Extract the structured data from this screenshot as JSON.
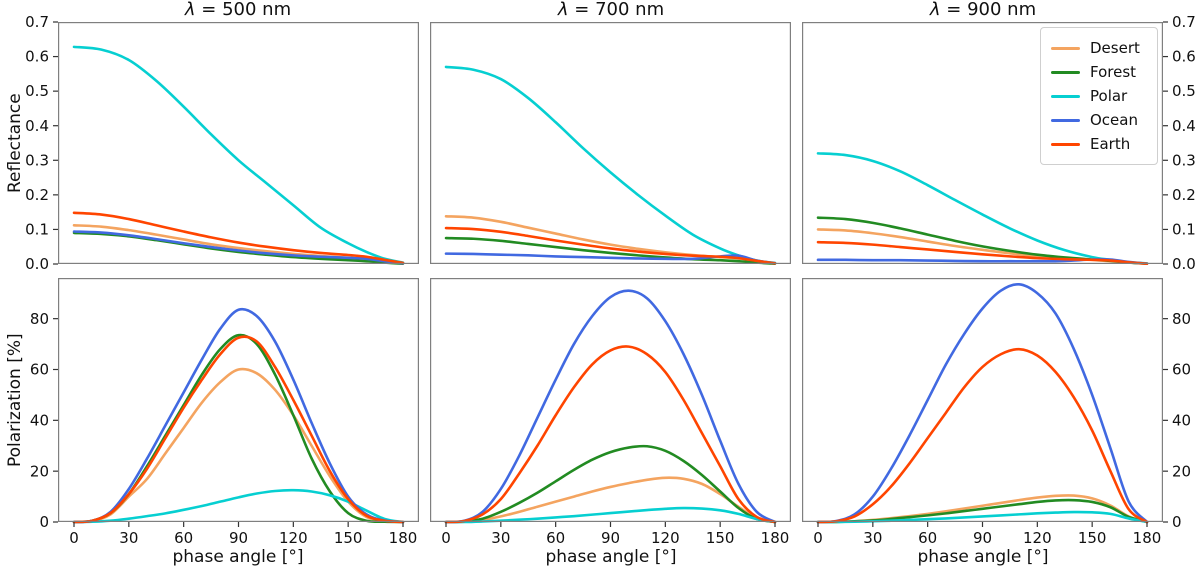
{
  "figure": {
    "titles": [
      "λ = 500 nm",
      "λ = 700 nm",
      "λ = 900 nm"
    ],
    "ylabels": [
      "Reflectance",
      "Polarization [%]"
    ],
    "xlabel": "phase angle [°]",
    "x_ticks": {
      "values": [
        0,
        30,
        60,
        90,
        120,
        150,
        180
      ],
      "labels": [
        "0",
        "30",
        "60",
        "90",
        "120",
        "150",
        "180"
      ]
    },
    "y_ticks_reflectance": {
      "values": [
        0,
        0.1,
        0.2,
        0.3,
        0.4,
        0.5,
        0.6,
        0.7
      ],
      "labels": [
        "0.0",
        "0.1",
        "0.2",
        "0.3",
        "0.4",
        "0.5",
        "0.6",
        "0.7"
      ]
    },
    "y_ticks_polarization": {
      "values": [
        0,
        20,
        40,
        60,
        80
      ],
      "labels": [
        "0",
        "20",
        "40",
        "60",
        "80"
      ]
    },
    "frame_color": "#7f7f7f",
    "tick_color": "#333333",
    "text_color": "#111111",
    "grid": "off",
    "legend_position": "upper right of top-right panel"
  },
  "legend": {
    "entries": [
      {
        "label": "Desert",
        "color": "#F4A460"
      },
      {
        "label": "Forest",
        "color": "#228B22"
      },
      {
        "label": "Polar",
        "color": "#06CFD1"
      },
      {
        "label": "Ocean",
        "color": "#4169E1"
      },
      {
        "label": "Earth",
        "color": "#FF4500"
      }
    ]
  },
  "chart_data": [
    {
      "type": "line",
      "panel": "reflectance-500nm",
      "row": 0,
      "col": 0,
      "title": "λ = 500 nm",
      "ylabel": "Reflectance",
      "xlim": [
        0,
        180
      ],
      "ylim": [
        0,
        0.7
      ],
      "x": [
        0,
        15,
        30,
        45,
        60,
        75,
        90,
        105,
        120,
        135,
        150,
        160,
        170,
        180
      ],
      "series": [
        {
          "name": "Desert",
          "color": "#F4A460",
          "y": [
            0.112,
            0.108,
            0.098,
            0.085,
            0.071,
            0.057,
            0.046,
            0.037,
            0.029,
            0.023,
            0.018,
            0.014,
            0.008,
            0.002
          ]
        },
        {
          "name": "Forest",
          "color": "#228B22",
          "y": [
            0.09,
            0.087,
            0.08,
            0.069,
            0.057,
            0.045,
            0.035,
            0.027,
            0.02,
            0.015,
            0.011,
            0.008,
            0.004,
            0.001
          ]
        },
        {
          "name": "Polar",
          "color": "#06CFD1",
          "y": [
            0.628,
            0.62,
            0.59,
            0.53,
            0.455,
            0.375,
            0.3,
            0.235,
            0.17,
            0.105,
            0.06,
            0.035,
            0.015,
            0.004
          ]
        },
        {
          "name": "Ocean",
          "color": "#4169E1",
          "y": [
            0.094,
            0.091,
            0.083,
            0.072,
            0.06,
            0.049,
            0.039,
            0.031,
            0.025,
            0.021,
            0.018,
            0.015,
            0.008,
            0.002
          ]
        },
        {
          "name": "Earth",
          "color": "#FF4500",
          "y": [
            0.148,
            0.143,
            0.13,
            0.112,
            0.094,
            0.077,
            0.062,
            0.05,
            0.04,
            0.032,
            0.026,
            0.021,
            0.012,
            0.003
          ]
        }
      ]
    },
    {
      "type": "line",
      "panel": "reflectance-700nm",
      "row": 0,
      "col": 1,
      "title": "λ = 700 nm",
      "ylabel": "Reflectance",
      "xlim": [
        0,
        180
      ],
      "ylim": [
        0,
        0.7
      ],
      "x": [
        0,
        15,
        30,
        45,
        60,
        75,
        90,
        105,
        120,
        135,
        150,
        160,
        170,
        180
      ],
      "series": [
        {
          "name": "Desert",
          "color": "#F4A460",
          "y": [
            0.138,
            0.134,
            0.122,
            0.105,
            0.088,
            0.071,
            0.056,
            0.044,
            0.034,
            0.026,
            0.02,
            0.016,
            0.008,
            0.002
          ]
        },
        {
          "name": "Forest",
          "color": "#228B22",
          "y": [
            0.075,
            0.073,
            0.067,
            0.058,
            0.049,
            0.04,
            0.032,
            0.025,
            0.019,
            0.014,
            0.011,
            0.008,
            0.004,
            0.001
          ]
        },
        {
          "name": "Polar",
          "color": "#06CFD1",
          "y": [
            0.57,
            0.562,
            0.535,
            0.48,
            0.41,
            0.335,
            0.265,
            0.2,
            0.14,
            0.085,
            0.045,
            0.025,
            0.01,
            0.003
          ]
        },
        {
          "name": "Ocean",
          "color": "#4169E1",
          "y": [
            0.03,
            0.029,
            0.027,
            0.025,
            0.022,
            0.02,
            0.018,
            0.016,
            0.015,
            0.015,
            0.022,
            0.024,
            0.01,
            0.002
          ]
        },
        {
          "name": "Earth",
          "color": "#FF4500",
          "y": [
            0.104,
            0.101,
            0.093,
            0.081,
            0.068,
            0.056,
            0.045,
            0.036,
            0.029,
            0.024,
            0.021,
            0.017,
            0.009,
            0.002
          ]
        }
      ]
    },
    {
      "type": "line",
      "panel": "reflectance-900nm",
      "row": 0,
      "col": 2,
      "title": "λ = 900 nm",
      "ylabel": "Reflectance",
      "xlim": [
        0,
        180
      ],
      "ylim": [
        0,
        0.7
      ],
      "x": [
        0,
        15,
        30,
        45,
        60,
        75,
        90,
        105,
        120,
        135,
        150,
        160,
        170,
        180
      ],
      "series": [
        {
          "name": "Desert",
          "color": "#F4A460",
          "y": [
            0.1,
            0.097,
            0.089,
            0.078,
            0.065,
            0.052,
            0.041,
            0.031,
            0.023,
            0.017,
            0.012,
            0.008,
            0.004,
            0.001
          ]
        },
        {
          "name": "Forest",
          "color": "#228B22",
          "y": [
            0.134,
            0.13,
            0.119,
            0.103,
            0.085,
            0.067,
            0.051,
            0.038,
            0.027,
            0.019,
            0.013,
            0.009,
            0.004,
            0.001
          ]
        },
        {
          "name": "Polar",
          "color": "#06CFD1",
          "y": [
            0.32,
            0.315,
            0.298,
            0.268,
            0.228,
            0.185,
            0.143,
            0.103,
            0.068,
            0.04,
            0.02,
            0.012,
            0.005,
            0.002
          ]
        },
        {
          "name": "Ocean",
          "color": "#4169E1",
          "y": [
            0.012,
            0.012,
            0.011,
            0.011,
            0.01,
            0.009,
            0.008,
            0.008,
            0.008,
            0.009,
            0.013,
            0.013,
            0.006,
            0.001
          ]
        },
        {
          "name": "Earth",
          "color": "#FF4500",
          "y": [
            0.063,
            0.061,
            0.056,
            0.049,
            0.042,
            0.035,
            0.028,
            0.022,
            0.017,
            0.014,
            0.012,
            0.01,
            0.005,
            0.001
          ]
        }
      ]
    },
    {
      "type": "line",
      "panel": "polarization-500nm",
      "row": 1,
      "col": 0,
      "title": "λ = 500 nm",
      "ylabel": "Polarization [%]",
      "xlabel": "phase angle [°]",
      "xlim": [
        0,
        180
      ],
      "ylim": [
        0,
        96
      ],
      "x": [
        0,
        10,
        20,
        30,
        40,
        50,
        60,
        70,
        80,
        90,
        100,
        110,
        120,
        130,
        140,
        150,
        160,
        170,
        180
      ],
      "series": [
        {
          "name": "Desert",
          "color": "#F4A460",
          "y": [
            0,
            0.4,
            3,
            10,
            17,
            27,
            37,
            47,
            55,
            60,
            58.5,
            52,
            42,
            30,
            18,
            8,
            2,
            0.4,
            0
          ]
        },
        {
          "name": "Forest",
          "color": "#228B22",
          "y": [
            0,
            0.5,
            3.5,
            11,
            22,
            34,
            46,
            58,
            68,
            73.5,
            70,
            58,
            42,
            25,
            12,
            3.5,
            0.5,
            0.1,
            0
          ]
        },
        {
          "name": "Polar",
          "color": "#06CFD1",
          "y": [
            0,
            0.1,
            0.5,
            1.3,
            2.3,
            3.4,
            4.8,
            6.3,
            8,
            9.7,
            11.2,
            12.2,
            12.5,
            12,
            10.5,
            8,
            4.5,
            1.2,
            0
          ]
        },
        {
          "name": "Ocean",
          "color": "#4169E1",
          "y": [
            0,
            0.5,
            4,
            13,
            25,
            38,
            51,
            64,
            76,
            83.5,
            81,
            71,
            56,
            39,
            23,
            10,
            3,
            0.6,
            0
          ]
        },
        {
          "name": "Earth",
          "color": "#FF4500",
          "y": [
            0,
            0.5,
            3.5,
            11,
            21,
            33,
            45,
            56,
            66,
            72.5,
            71,
            61,
            48,
            34,
            20,
            9,
            2.5,
            0.5,
            0
          ]
        }
      ]
    },
    {
      "type": "line",
      "panel": "polarization-700nm",
      "row": 1,
      "col": 1,
      "title": "λ = 700 nm",
      "ylabel": "Polarization [%]",
      "xlabel": "phase angle [°]",
      "xlim": [
        0,
        180
      ],
      "ylim": [
        0,
        96
      ],
      "x": [
        0,
        10,
        20,
        30,
        40,
        50,
        60,
        70,
        80,
        90,
        100,
        110,
        120,
        130,
        140,
        150,
        160,
        170,
        180
      ],
      "series": [
        {
          "name": "Desert",
          "color": "#F4A460",
          "y": [
            0,
            0.1,
            0.8,
            2.2,
            4,
            6,
            8,
            10,
            12,
            13.8,
            15.3,
            16.6,
            17.4,
            17,
            15,
            11,
            6,
            1.5,
            0
          ]
        },
        {
          "name": "Forest",
          "color": "#228B22",
          "y": [
            0,
            0.2,
            1.3,
            4,
            7.5,
            11.5,
            16,
            20.5,
            24.5,
            27.5,
            29.3,
            29.8,
            28,
            24,
            18.5,
            12,
            5.5,
            1.2,
            0
          ]
        },
        {
          "name": "Polar",
          "color": "#06CFD1",
          "y": [
            0,
            0,
            0.2,
            0.5,
            0.9,
            1.3,
            1.8,
            2.3,
            2.9,
            3.5,
            4.1,
            4.7,
            5.2,
            5.5,
            5.3,
            4.6,
            3.2,
            1.2,
            0
          ]
        },
        {
          "name": "Ocean",
          "color": "#4169E1",
          "y": [
            0,
            0.5,
            4,
            13,
            26,
            41,
            56,
            70,
            81,
            88.5,
            91,
            88,
            79,
            66,
            50,
            32,
            15,
            4,
            0
          ]
        },
        {
          "name": "Earth",
          "color": "#FF4500",
          "y": [
            0,
            0.4,
            3,
            9,
            19,
            30,
            42,
            53,
            62,
            67.5,
            69,
            66,
            59,
            48,
            35,
            22,
            9,
            2,
            0
          ]
        }
      ]
    },
    {
      "type": "line",
      "panel": "polarization-900nm",
      "row": 1,
      "col": 2,
      "title": "λ = 900 nm",
      "ylabel": "Polarization [%]",
      "xlabel": "phase angle [°]",
      "xlim": [
        0,
        180
      ],
      "ylim": [
        0,
        96
      ],
      "x": [
        0,
        10,
        20,
        30,
        40,
        50,
        60,
        70,
        80,
        90,
        100,
        110,
        120,
        130,
        140,
        150,
        160,
        170,
        180
      ],
      "series": [
        {
          "name": "Desert",
          "color": "#F4A460",
          "y": [
            0,
            0.05,
            0.3,
            0.8,
            1.5,
            2.3,
            3.2,
            4.2,
            5.3,
            6.4,
            7.5,
            8.6,
            9.6,
            10.3,
            10.4,
            9.3,
            6.5,
            2.2,
            0
          ]
        },
        {
          "name": "Forest",
          "color": "#228B22",
          "y": [
            0,
            0.04,
            0.25,
            0.6,
            1.2,
            1.9,
            2.6,
            3.4,
            4.3,
            5.2,
            6.1,
            7,
            7.9,
            8.5,
            8.6,
            7.9,
            5.8,
            2,
            0
          ]
        },
        {
          "name": "Polar",
          "color": "#06CFD1",
          "y": [
            0,
            0,
            0.1,
            0.3,
            0.5,
            0.8,
            1.1,
            1.4,
            1.8,
            2.2,
            2.6,
            3,
            3.4,
            3.7,
            3.9,
            3.8,
            3.2,
            1.4,
            0
          ]
        },
        {
          "name": "Ocean",
          "color": "#4169E1",
          "y": [
            0,
            0.4,
            3,
            10,
            21,
            34,
            48,
            62,
            74,
            84,
            91,
            93.5,
            90,
            82,
            68,
            50,
            29,
            8,
            0
          ]
        },
        {
          "name": "Earth",
          "color": "#FF4500",
          "y": [
            0,
            0.3,
            2.2,
            7,
            14,
            23,
            33,
            43,
            53,
            61,
            66,
            68,
            65.5,
            59,
            49,
            36,
            20,
            5,
            0
          ]
        }
      ]
    }
  ]
}
